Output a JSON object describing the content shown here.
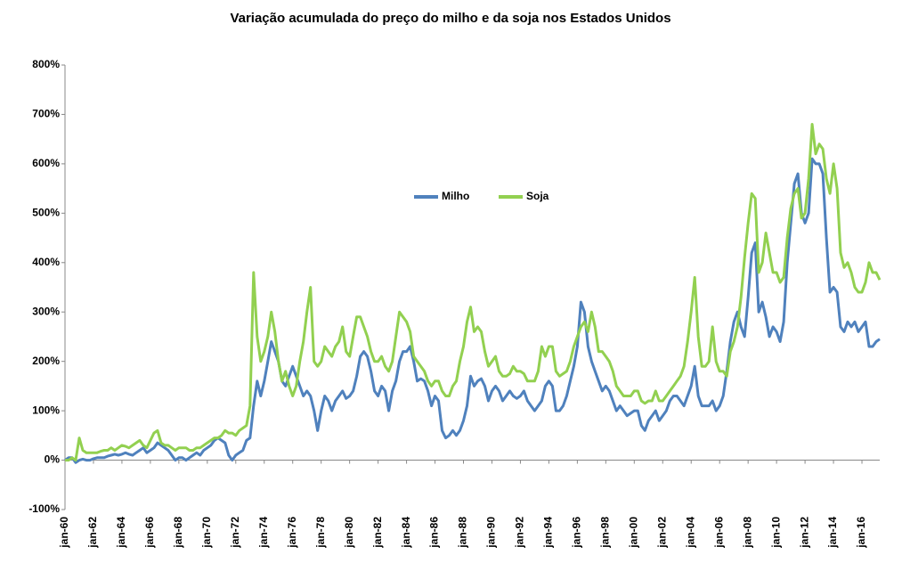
{
  "chart_data": {
    "type": "line",
    "title": "Variação acumulada do preço do milho e da soja nos Estados Unidos",
    "categories": [
      "jan-60",
      null,
      null,
      null,
      null,
      null,
      null,
      null,
      "jan-62",
      null,
      null,
      null,
      null,
      null,
      null,
      null,
      "jan-64",
      null,
      null,
      null,
      null,
      null,
      null,
      null,
      "jan-66",
      null,
      null,
      null,
      null,
      null,
      null,
      null,
      "jan-68",
      null,
      null,
      null,
      null,
      null,
      null,
      null,
      "jan-70",
      null,
      null,
      null,
      null,
      null,
      null,
      null,
      "jan-72",
      null,
      null,
      null,
      null,
      null,
      null,
      null,
      "jan-74",
      null,
      null,
      null,
      null,
      null,
      null,
      null,
      "jan-76",
      null,
      null,
      null,
      null,
      null,
      null,
      null,
      "jan-78",
      null,
      null,
      null,
      null,
      null,
      null,
      null,
      "jan-80",
      null,
      null,
      null,
      null,
      null,
      null,
      null,
      "jan-82",
      null,
      null,
      null,
      null,
      null,
      null,
      null,
      "jan-84",
      null,
      null,
      null,
      null,
      null,
      null,
      null,
      "jan-86",
      null,
      null,
      null,
      null,
      null,
      null,
      null,
      "jan-88",
      null,
      null,
      null,
      null,
      null,
      null,
      null,
      "jan-90",
      null,
      null,
      null,
      null,
      null,
      null,
      null,
      "jan-92",
      null,
      null,
      null,
      null,
      null,
      null,
      null,
      "jan-94",
      null,
      null,
      null,
      null,
      null,
      null,
      null,
      "jan-96",
      null,
      null,
      null,
      null,
      null,
      null,
      null,
      "jan-98",
      null,
      null,
      null,
      null,
      null,
      null,
      null,
      "jan-00",
      null,
      null,
      null,
      null,
      null,
      null,
      null,
      "jan-02",
      null,
      null,
      null,
      null,
      null,
      null,
      null,
      "jan-04",
      null,
      null,
      null,
      null,
      null,
      null,
      null,
      "jan-06",
      null,
      null,
      null,
      null,
      null,
      null,
      null,
      "jan-08",
      null,
      null,
      null,
      null,
      null,
      null,
      null,
      "jan-10",
      null,
      null,
      null,
      null,
      null,
      null,
      null,
      "jan-12",
      null,
      null,
      null,
      null,
      null,
      null,
      null,
      "jan-14",
      null,
      null,
      null,
      null,
      null,
      null,
      null,
      "jan-16",
      null,
      null,
      null,
      null,
      null
    ],
    "series": [
      {
        "name": "Milho",
        "color": "#4f81bd",
        "values": [
          0,
          5,
          5,
          -5,
          0,
          2,
          0,
          0,
          3,
          5,
          5,
          5,
          8,
          10,
          12,
          10,
          12,
          15,
          12,
          10,
          15,
          20,
          25,
          15,
          20,
          25,
          35,
          30,
          25,
          20,
          10,
          0,
          5,
          5,
          0,
          5,
          10,
          15,
          10,
          20,
          25,
          30,
          40,
          45,
          40,
          35,
          10,
          0,
          10,
          15,
          20,
          40,
          45,
          110,
          160,
          130,
          160,
          200,
          240,
          220,
          200,
          160,
          150,
          170,
          190,
          170,
          150,
          130,
          140,
          130,
          100,
          60,
          100,
          130,
          120,
          100,
          120,
          130,
          140,
          125,
          130,
          140,
          170,
          210,
          220,
          210,
          180,
          140,
          130,
          150,
          140,
          100,
          140,
          160,
          200,
          220,
          220,
          230,
          200,
          160,
          165,
          160,
          140,
          110,
          130,
          120,
          60,
          45,
          50,
          60,
          50,
          60,
          80,
          110,
          170,
          150,
          160,
          165,
          150,
          120,
          140,
          150,
          140,
          120,
          130,
          140,
          130,
          125,
          130,
          140,
          120,
          110,
          100,
          110,
          120,
          150,
          160,
          150,
          100,
          100,
          110,
          130,
          160,
          190,
          230,
          320,
          300,
          230,
          200,
          180,
          160,
          140,
          150,
          140,
          120,
          100,
          110,
          100,
          90,
          95,
          100,
          100,
          70,
          60,
          80,
          90,
          100,
          80,
          90,
          100,
          120,
          130,
          130,
          120,
          110,
          130,
          150,
          190,
          130,
          110,
          110,
          110,
          120,
          100,
          110,
          130,
          180,
          240,
          280,
          300,
          270,
          250,
          330,
          420,
          440,
          300,
          320,
          290,
          250,
          270,
          260,
          240,
          280,
          400,
          480,
          560,
          580,
          500,
          480,
          500,
          610,
          600,
          600,
          580,
          450,
          340,
          350,
          340,
          270,
          260,
          280,
          270,
          280,
          260,
          270,
          280,
          230,
          230,
          240,
          245
        ]
      },
      {
        "name": "Soja",
        "color": "#92d050",
        "values": [
          0,
          0,
          5,
          0,
          45,
          20,
          15,
          15,
          15,
          15,
          18,
          20,
          20,
          25,
          20,
          25,
          30,
          28,
          25,
          30,
          35,
          40,
          30,
          25,
          40,
          55,
          60,
          35,
          30,
          30,
          25,
          20,
          25,
          25,
          25,
          20,
          20,
          25,
          25,
          30,
          35,
          40,
          45,
          45,
          50,
          60,
          55,
          55,
          50,
          60,
          65,
          70,
          110,
          380,
          250,
          200,
          220,
          250,
          300,
          260,
          200,
          160,
          180,
          150,
          130,
          150,
          200,
          240,
          300,
          350,
          200,
          190,
          200,
          230,
          220,
          210,
          230,
          240,
          270,
          220,
          210,
          250,
          290,
          290,
          270,
          250,
          220,
          200,
          200,
          210,
          190,
          180,
          200,
          250,
          300,
          290,
          280,
          260,
          210,
          200,
          190,
          180,
          160,
          150,
          160,
          160,
          140,
          130,
          130,
          150,
          160,
          200,
          230,
          280,
          310,
          260,
          270,
          260,
          220,
          190,
          200,
          210,
          180,
          170,
          170,
          175,
          190,
          180,
          180,
          175,
          160,
          160,
          160,
          180,
          230,
          210,
          230,
          230,
          180,
          170,
          175,
          180,
          200,
          230,
          250,
          270,
          280,
          260,
          300,
          270,
          220,
          220,
          210,
          200,
          180,
          150,
          140,
          130,
          130,
          130,
          140,
          140,
          120,
          115,
          120,
          120,
          140,
          120,
          120,
          130,
          140,
          150,
          160,
          170,
          190,
          240,
          300,
          370,
          250,
          190,
          190,
          200,
          270,
          200,
          180,
          180,
          170,
          220,
          240,
          270,
          330,
          410,
          480,
          540,
          530,
          380,
          400,
          460,
          420,
          380,
          380,
          360,
          370,
          450,
          510,
          540,
          550,
          490,
          500,
          570,
          680,
          620,
          640,
          630,
          570,
          540,
          600,
          550,
          420,
          390,
          400,
          380,
          350,
          340,
          340,
          360,
          400,
          380,
          380,
          365
        ]
      }
    ],
    "ylim": [
      -100,
      800
    ],
    "yticks": [
      {
        "value": -100,
        "label": "-100%"
      },
      {
        "value": 0,
        "label": "0%"
      },
      {
        "value": 100,
        "label": "100%"
      },
      {
        "value": 200,
        "label": "200%"
      },
      {
        "value": 300,
        "label": "300%"
      },
      {
        "value": 400,
        "label": "400%"
      },
      {
        "value": 500,
        "label": "500%"
      },
      {
        "value": 600,
        "label": "600%"
      },
      {
        "value": 700,
        "label": "700%"
      },
      {
        "value": 800,
        "label": "800%"
      }
    ],
    "grid": false,
    "legend": "center"
  }
}
